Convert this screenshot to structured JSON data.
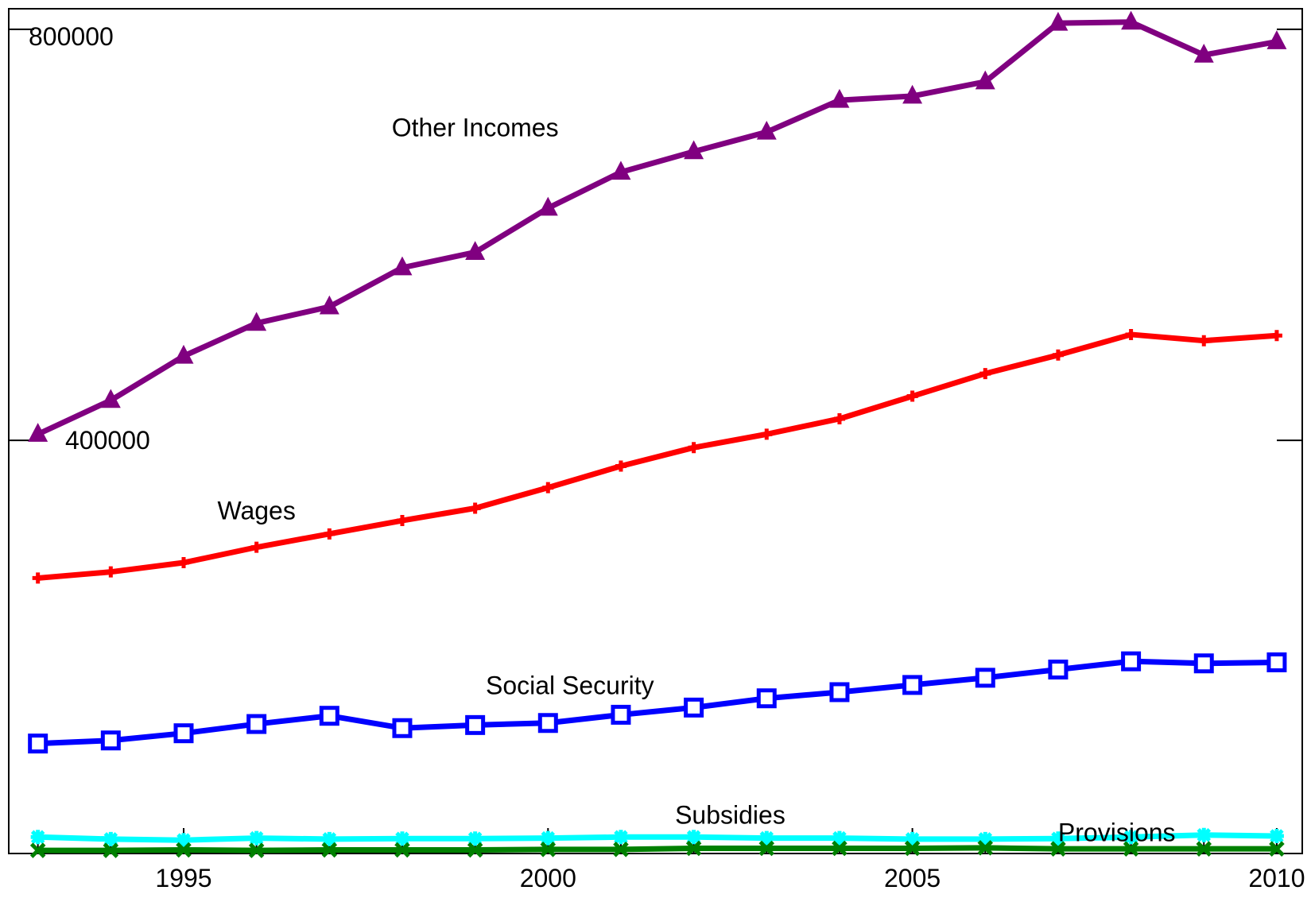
{
  "chart_data": {
    "type": "line",
    "x": [
      1993,
      1994,
      1995,
      1996,
      1997,
      1998,
      1999,
      2000,
      2001,
      2002,
      2003,
      2004,
      2005,
      2006,
      2007,
      2008,
      2009,
      2010
    ],
    "xlim": [
      1992.6,
      2010.35
    ],
    "ylim": [
      -2000,
      820000
    ],
    "xticks": [
      1995,
      2000,
      2005,
      2010
    ],
    "xtick_labels": [
      "1995",
      "2000",
      "2005",
      "2010"
    ],
    "yticks": [
      400000,
      800000
    ],
    "ytick_labels": [
      "400000",
      "800000"
    ],
    "grid": false,
    "legend": "none",
    "series": [
      {
        "name": "Other Incomes",
        "color": "#800080",
        "marker": "triangle",
        "values": [
          406000,
          439000,
          482000,
          514000,
          530000,
          568000,
          583000,
          626000,
          661000,
          681000,
          700000,
          731000,
          735000,
          749000,
          806000,
          807000,
          775000,
          788000
        ]
      },
      {
        "name": "Wages",
        "color": "#ff0000",
        "marker": "plus",
        "values": [
          266000,
          272000,
          281000,
          296000,
          309000,
          322000,
          334000,
          354000,
          375000,
          393000,
          406000,
          421000,
          443000,
          465000,
          483000,
          503000,
          497000,
          502000
        ]
      },
      {
        "name": "Social Security",
        "color": "#0000ff",
        "marker": "square",
        "values": [
          105000,
          108000,
          115000,
          124000,
          132000,
          120000,
          123000,
          125000,
          133000,
          140000,
          149000,
          155000,
          162000,
          169000,
          177000,
          185000,
          183000,
          184000
        ]
      },
      {
        "name": "Subsidies",
        "color": "#00ffff",
        "marker": "star",
        "values": [
          14000,
          12000,
          11000,
          13000,
          12000,
          12500,
          12500,
          13000,
          14000,
          14000,
          13000,
          13000,
          12000,
          12000,
          12500,
          14000,
          16000,
          15000
        ]
      },
      {
        "name": "Provisions",
        "color": "#008000",
        "marker": "x",
        "values": [
          1000,
          1000,
          1500,
          1000,
          1500,
          1500,
          1500,
          2000,
          2000,
          3000,
          3000,
          3000,
          3000,
          3500,
          2500,
          2500,
          2500,
          2500
        ]
      }
    ]
  }
}
